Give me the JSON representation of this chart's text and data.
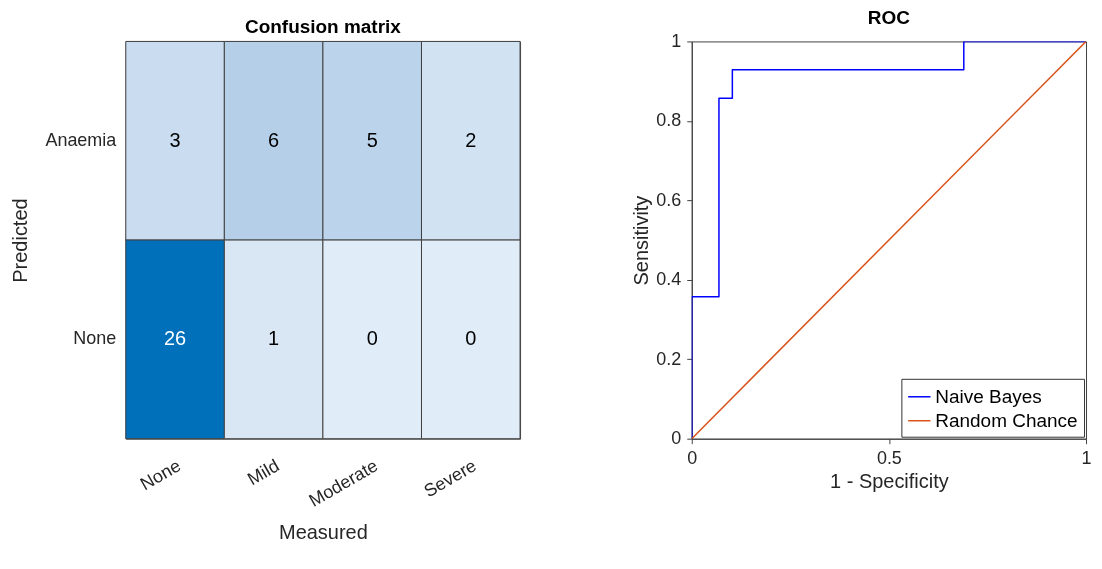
{
  "chart_data": [
    {
      "type": "heatmap",
      "title": "Confusion matrix",
      "xlabel": "Measured",
      "ylabel": "Predicted",
      "categories": [
        "None",
        "Mild",
        "Moderate",
        "Severe"
      ],
      "y_categories": [
        "Anaemia",
        "None"
      ],
      "cells": [
        [
          3,
          6,
          5,
          2
        ],
        [
          26,
          1,
          0,
          0
        ]
      ],
      "data_labels": true
    },
    {
      "type": "line",
      "title": "ROC",
      "xlabel": "1 - Specificity",
      "ylabel": "Sensitivity",
      "xlim": [
        0,
        1
      ],
      "ylim": [
        0,
        1
      ],
      "xticks": [
        0,
        0.5,
        1
      ],
      "yticks": [
        0,
        0.2,
        0.4,
        0.6,
        0.8,
        1
      ],
      "grid": false,
      "legend": "bottom right",
      "series": [
        {
          "name": "Naive Bayes",
          "color": "#0000ff",
          "type": "step",
          "x": [
            0,
            0,
            0.069,
            0.103,
            0.69,
            1
          ],
          "values": [
            0,
            0.357,
            0.857,
            0.929,
            1,
            1
          ]
        },
        {
          "name": "Random Chance",
          "color": "#d95319",
          "type": "line",
          "x": [
            0,
            1
          ],
          "values": [
            0,
            1
          ]
        }
      ]
    }
  ]
}
